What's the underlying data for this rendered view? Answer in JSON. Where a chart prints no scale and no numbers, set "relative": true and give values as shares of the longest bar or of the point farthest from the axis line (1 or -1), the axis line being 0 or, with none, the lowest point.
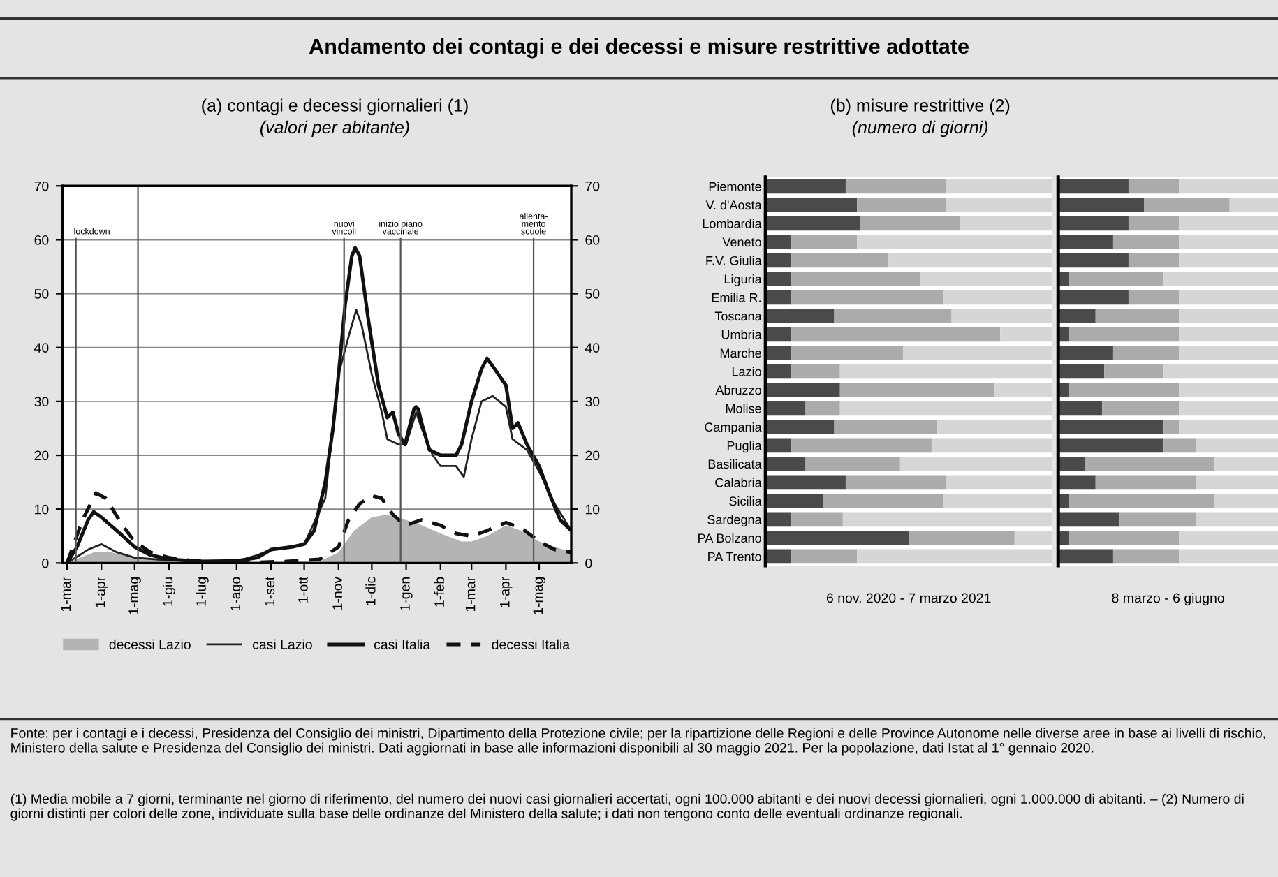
{
  "chart_data": [
    {
      "type": "line",
      "title": "(a) contagi e decessi giornalieri (1)",
      "subtitle": "(valori per abitante)",
      "annotations": [
        "Andamento dei contagi e dei decessi e misure restrittive adottate",
        "Fonte: per i contagi e i decessi, Presidenza del Consiglio dei ministri, Dipartimento della Protezione civile; per la ripartizione delle Regioni e delle Province Autonome nelle diverse aree in base ai livelli di rischio, Ministero della salute e Presidenza del Consiglio dei ministri. Dati aggiornati in base alle informazioni disponibili al 30 maggio 2021. Per la popolazione, dati Istat al 1° gennaio 2020.",
        "(1) Media mobile a 7 giorni, terminante nel giorno di riferimento, del numero dei nuovi casi giornalieri accertati, ogni 100.000 abitanti e dei nuovi decessi giornalieri, ogni 1.000.000 di abitanti. – (2) Numero di giorni distinti per colori delle zone, individuate sulla base delle ordinanze del Ministero della salute; i dati non tengono conto delle eventuali ordinanze regionali."
      ],
      "xlim": [
        "2020-02-26",
        "2021-05-30"
      ],
      "xticks": [
        {
          "value": "2020-03-01",
          "label": "1-mar"
        },
        {
          "value": "2020-04-01",
          "label": "1-apr"
        },
        {
          "value": "2020-05-01",
          "label": "1-mag"
        },
        {
          "value": "2020-06-01",
          "label": "1-giu"
        },
        {
          "value": "2020-07-01",
          "label": "1-lug"
        },
        {
          "value": "2020-08-01",
          "label": "1-ago"
        },
        {
          "value": "2020-09-01",
          "label": "1-set"
        },
        {
          "value": "2020-10-01",
          "label": "1-ott"
        },
        {
          "value": "2020-11-01",
          "label": "1-nov"
        },
        {
          "value": "2020-12-01",
          "label": "1-dic"
        },
        {
          "value": "2021-01-01",
          "label": "1-gen"
        },
        {
          "value": "2021-02-01",
          "label": "1-feb"
        },
        {
          "value": "2021-03-01",
          "label": "1-mar"
        },
        {
          "value": "2021-04-01",
          "label": "1-apr"
        },
        {
          "value": "2021-05-01",
          "label": "1-mag"
        }
      ],
      "ylim": [
        0,
        70
      ],
      "yticks": [
        0,
        10,
        20,
        30,
        40,
        50,
        60,
        70
      ],
      "y2lim": [
        0,
        70
      ],
      "y2ticks": [
        0,
        10,
        20,
        30,
        40,
        50,
        60,
        70
      ],
      "grid": "y",
      "legend": "bottom",
      "ref_lines": [
        {
          "axis": "x",
          "value": "2020-03-09",
          "label": "lockdown"
        },
        {
          "axis": "x",
          "value": "2020-05-04",
          "label": null
        },
        {
          "axis": "x",
          "value": "2020-11-06",
          "label": "nuovi\nvincoli"
        },
        {
          "axis": "x",
          "value": "2020-12-27",
          "label": "inizio piano\nvaccinale"
        },
        {
          "axis": "x",
          "value": "2021-04-26",
          "label": "allenta-\nmento\nscuole"
        }
      ],
      "series": [
        {
          "name": "decessi Lazio",
          "type": "area",
          "color": "#b4b4b4",
          "x": [
            "2020-03-01",
            "2020-03-25",
            "2020-04-10",
            "2020-05-01",
            "2020-06-01",
            "2020-07-01",
            "2020-10-15",
            "2020-11-01",
            "2020-11-15",
            "2020-12-01",
            "2020-12-15",
            "2021-01-01",
            "2021-01-15",
            "2021-02-01",
            "2021-02-20",
            "2021-03-01",
            "2021-03-15",
            "2021-04-01",
            "2021-04-15",
            "2021-05-01",
            "2021-05-30"
          ],
          "values": [
            0,
            2,
            2,
            1,
            0.5,
            0.2,
            0.3,
            2,
            6,
            8.5,
            9,
            8,
            7,
            5.5,
            4,
            4,
            5,
            7,
            6,
            4,
            2
          ]
        },
        {
          "name": "casi Lazio",
          "type": "line",
          "color": "#222222",
          "x": [
            "2020-03-01",
            "2020-03-20",
            "2020-04-01",
            "2020-04-15",
            "2020-05-01",
            "2020-06-01",
            "2020-08-01",
            "2020-08-20",
            "2020-09-01",
            "2020-10-01",
            "2020-10-20",
            "2020-11-01",
            "2020-11-10",
            "2020-11-17",
            "2020-11-22",
            "2020-12-01",
            "2020-12-10",
            "2020-12-15",
            "2020-12-25",
            "2021-01-01",
            "2021-01-10",
            "2021-01-15",
            "2021-01-25",
            "2021-02-01",
            "2021-02-15",
            "2021-02-22",
            "2021-03-01",
            "2021-03-10",
            "2021-03-20",
            "2021-04-01",
            "2021-04-07",
            "2021-04-20",
            "2021-05-01",
            "2021-05-15",
            "2021-05-30"
          ],
          "values": [
            0,
            2.5,
            3.5,
            2,
            1,
            0.5,
            0.3,
            1.5,
            2.5,
            3.5,
            12,
            35,
            42,
            47,
            44,
            35,
            28,
            23,
            22,
            22,
            28,
            25,
            20,
            18,
            18,
            16,
            23,
            30,
            31,
            29,
            23,
            21,
            17,
            11,
            6
          ]
        },
        {
          "name": "casi Italia",
          "type": "line",
          "color": "#111111",
          "x": [
            "2020-03-01",
            "2020-03-10",
            "2020-03-20",
            "2020-03-25",
            "2020-04-01",
            "2020-04-15",
            "2020-05-01",
            "2020-05-15",
            "2020-06-01",
            "2020-07-01",
            "2020-08-01",
            "2020-08-20",
            "2020-09-01",
            "2020-09-20",
            "2020-10-01",
            "2020-10-10",
            "2020-10-20",
            "2020-10-27",
            "2020-11-01",
            "2020-11-07",
            "2020-11-13",
            "2020-11-16",
            "2020-11-20",
            "2020-11-28",
            "2020-12-07",
            "2020-12-15",
            "2020-12-20",
            "2020-12-25",
            "2020-12-31",
            "2021-01-06",
            "2021-01-08",
            "2021-01-10",
            "2021-01-12",
            "2021-01-15",
            "2021-01-22",
            "2021-02-01",
            "2021-02-15",
            "2021-02-20",
            "2021-03-01",
            "2021-03-10",
            "2021-03-15",
            "2021-03-22",
            "2021-04-01",
            "2021-04-07",
            "2021-04-12",
            "2021-04-20",
            "2021-05-01",
            "2021-05-10",
            "2021-05-20",
            "2021-05-30"
          ],
          "values": [
            0,
            3,
            8,
            9.5,
            8.5,
            6,
            3,
            1.5,
            0.7,
            0.3,
            0.4,
            1,
            2.5,
            3,
            3.5,
            6,
            15,
            25,
            35,
            48,
            57,
            58.5,
            57,
            45,
            33,
            27,
            28,
            24,
            22,
            27,
            28.5,
            29,
            28.5,
            26,
            21,
            20,
            20,
            22,
            30,
            36,
            38,
            36,
            33,
            25,
            26,
            22,
            18,
            13,
            8,
            6
          ]
        },
        {
          "name": "decessi Italia",
          "type": "line",
          "line_style": "dashed",
          "color": "#111111",
          "x": [
            "2020-03-01",
            "2020-03-15",
            "2020-03-27",
            "2020-04-05",
            "2020-04-20",
            "2020-05-01",
            "2020-05-15",
            "2020-06-01",
            "2020-06-20",
            "2020-07-15",
            "2020-08-15",
            "2020-09-15",
            "2020-10-15",
            "2020-11-01",
            "2020-11-10",
            "2020-11-20",
            "2020-12-01",
            "2020-12-10",
            "2020-12-20",
            "2020-12-31",
            "2021-01-15",
            "2021-02-01",
            "2021-02-15",
            "2021-03-01",
            "2021-03-15",
            "2021-04-01",
            "2021-04-15",
            "2021-05-01",
            "2021-05-15",
            "2021-05-30"
          ],
          "values": [
            0,
            8,
            13,
            12,
            7,
            4,
            2,
            1,
            0.5,
            0.2,
            0.1,
            0.3,
            0.7,
            3,
            8,
            11,
            12.5,
            12,
            9,
            7,
            8,
            7,
            5.5,
            5,
            6,
            7.5,
            6.5,
            4,
            2.5,
            2
          ]
        }
      ]
    },
    {
      "type": "bar",
      "orientation": "horizontal",
      "stacked": true,
      "relative": true,
      "tick_labels": "y",
      "title": "(b) misure restrittive (2)",
      "subtitle": "(numero di giorni)",
      "xlabel": "6 nov. 2020 - 7 marzo 2021",
      "categories": [
        "Piemonte",
        "V. d'Aosta",
        "Lombardia",
        "Veneto",
        "F.V. Giulia",
        "Liguria",
        "Emilia R.",
        "Toscana",
        "Umbria",
        "Marche",
        "Lazio",
        "Abruzzo",
        "Molise",
        "Campania",
        "Puglia",
        "Basilicata",
        "Calabria",
        "Sicilia",
        "Sardegna",
        "PA Bolzano",
        "PA Trento"
      ],
      "series": [
        {
          "color": "#4a4a4a",
          "values": [
            0.28,
            0.32,
            0.33,
            0.09,
            0.09,
            0.09,
            0.09,
            0.24,
            0.09,
            0.09,
            0.09,
            0.26,
            0.14,
            0.24,
            0.09,
            0.14,
            0.28,
            0.2,
            0.09,
            0.5,
            0.09
          ]
        },
        {
          "color": "#ababab",
          "values": [
            0.35,
            0.31,
            0.35,
            0.23,
            0.34,
            0.45,
            0.53,
            0.41,
            0.73,
            0.39,
            0.17,
            0.54,
            0.12,
            0.36,
            0.49,
            0.33,
            0.35,
            0.42,
            0.18,
            0.37,
            0.23
          ]
        },
        {
          "color": "#d6d6d6",
          "values": [
            0.37,
            0.37,
            0.32,
            0.68,
            0.57,
            0.46,
            0.38,
            0.35,
            0.18,
            0.52,
            0.74,
            0.2,
            0.74,
            0.4,
            0.42,
            0.53,
            0.37,
            0.38,
            0.73,
            0.13,
            0.68
          ]
        }
      ]
    },
    {
      "type": "bar",
      "orientation": "horizontal",
      "stacked": true,
      "relative": true,
      "tick_labels": false,
      "xlabel": "8 marzo - 6 giugno",
      "categories": [
        null,
        null,
        null,
        null,
        null,
        null,
        null,
        null,
        null,
        null,
        null,
        null,
        null,
        null,
        null,
        null,
        null,
        null,
        null,
        null,
        null
      ],
      "series": [
        {
          "color": "#4a4a4a",
          "values": [
            0.32,
            0.39,
            0.32,
            0.25,
            0.32,
            0.05,
            0.32,
            0.17,
            0.05,
            0.25,
            0.21,
            0.05,
            0.2,
            0.48,
            0.48,
            0.12,
            0.17,
            0.05,
            0.28,
            0.05,
            0.25
          ]
        },
        {
          "color": "#ababab",
          "values": [
            0.23,
            0.39,
            0.23,
            0.3,
            0.23,
            0.43,
            0.23,
            0.38,
            0.5,
            0.3,
            0.27,
            0.5,
            0.35,
            0.07,
            0.15,
            0.59,
            0.46,
            0.66,
            0.35,
            0.5,
            0.3
          ]
        },
        {
          "color": "#d6d6d6",
          "values": [
            0.45,
            0.22,
            0.45,
            0.45,
            0.45,
            0.52,
            0.45,
            0.45,
            0.45,
            0.45,
            0.52,
            0.45,
            0.45,
            0.45,
            0.37,
            0.29,
            0.37,
            0.29,
            0.37,
            0.45,
            0.45
          ]
        }
      ]
    }
  ]
}
